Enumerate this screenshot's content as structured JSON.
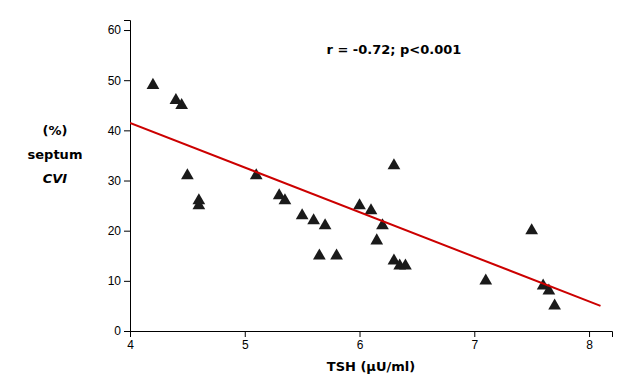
{
  "chart_data": {
    "type": "scatter",
    "xlabel": "TSH  (μU/ml)",
    "ylabel": [
      "(%)",
      "septum",
      "CVI"
    ],
    "annotation": {
      "text": "r = -0.72; p<0.001",
      "x": 6.3,
      "y": 56
    },
    "xlim": [
      4.0,
      8.2
    ],
    "ylim": [
      0,
      62
    ],
    "xticks": [
      4,
      5,
      6,
      7,
      8
    ],
    "yticks": [
      0,
      10,
      20,
      30,
      40,
      50,
      60
    ],
    "series": [
      {
        "type": "scatter",
        "marker": "triangle",
        "color": "#1a1a1a",
        "x": [
          4.2,
          4.4,
          4.45,
          4.5,
          4.6,
          4.6,
          5.1,
          5.3,
          5.35,
          5.5,
          5.6,
          5.65,
          5.7,
          5.8,
          6.0,
          6.1,
          6.15,
          6.2,
          6.3,
          6.3,
          6.35,
          6.4,
          7.1,
          7.5,
          7.6,
          7.65,
          7.7
        ],
        "values": [
          49,
          46,
          45,
          31,
          26,
          25,
          31,
          27,
          26,
          23,
          22,
          15,
          21,
          15,
          25,
          24,
          18,
          21,
          33,
          14,
          13,
          13,
          10,
          20,
          9,
          8,
          5
        ]
      },
      {
        "type": "line",
        "line_style": "solid",
        "color": "#cc0000",
        "x": [
          4.0,
          8.1
        ],
        "values": [
          41.5,
          5.0
        ]
      }
    ]
  }
}
